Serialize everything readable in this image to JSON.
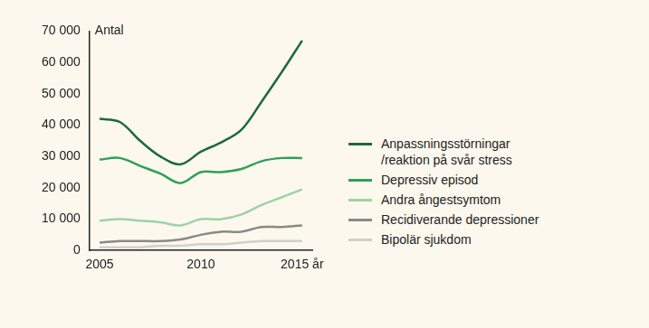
{
  "chart_data": {
    "type": "line",
    "y_label": "Antal",
    "x": [
      2005,
      2006,
      2007,
      2008,
      2009,
      2010,
      2011,
      2012,
      2013,
      2014,
      2015
    ],
    "xlim": [
      2004.5,
      2015.5
    ],
    "xticks": [
      2005,
      2010,
      {
        "value": 2015,
        "label": "2015 år"
      }
    ],
    "ylim": [
      0,
      70000
    ],
    "yticks": [
      0,
      {
        "value": 10000,
        "label": "10 000"
      },
      {
        "value": 20000,
        "label": "20 000"
      },
      {
        "value": 30000,
        "label": "30 000"
      },
      {
        "value": 40000,
        "label": "40 000"
      },
      {
        "value": 50000,
        "label": "50 000"
      },
      {
        "value": 60000,
        "label": "60 000"
      },
      {
        "value": 70000,
        "label": "70 000"
      }
    ],
    "grid": false,
    "legend": "right",
    "series": [
      {
        "name": "Anpassningsstörningar\n/reaktion på svår stress",
        "color": "#1b6b3a",
        "values": [
          42000,
          41000,
          35000,
          30000,
          27500,
          31500,
          34500,
          38500,
          47500,
          57000,
          67000
        ]
      },
      {
        "name": "Depressiv episod",
        "color": "#2fa05a",
        "values": [
          29000,
          29500,
          27000,
          24500,
          21500,
          25000,
          25000,
          26000,
          28500,
          29500,
          29500
        ]
      },
      {
        "name": "Andra ångestsymtom",
        "color": "#9dd3a6",
        "values": [
          9500,
          10000,
          9500,
          9000,
          8000,
          10000,
          10000,
          11500,
          14500,
          17000,
          19500
        ]
      },
      {
        "name": "Recidiverande depressioner",
        "color": "#8a8a8a",
        "values": [
          2500,
          3000,
          3000,
          3000,
          3500,
          5000,
          6000,
          6000,
          7500,
          7500,
          8000
        ]
      },
      {
        "name": "Bipolär sjukdom",
        "color": "#cfcfcf",
        "values": [
          1000,
          1000,
          1000,
          1500,
          1500,
          2000,
          2000,
          2500,
          3000,
          3000,
          3000
        ]
      }
    ]
  }
}
